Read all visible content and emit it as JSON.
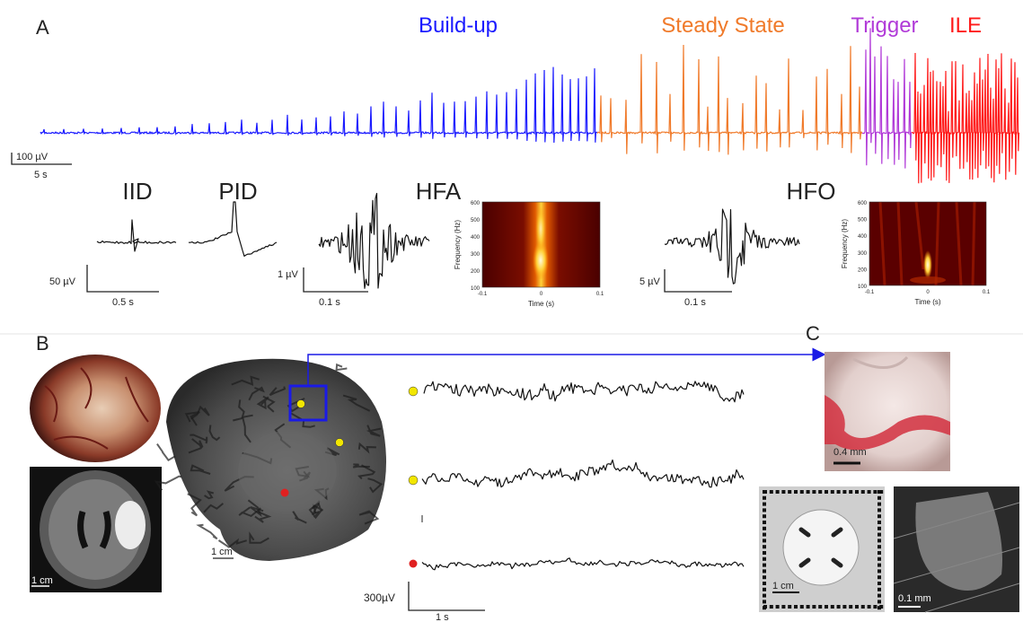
{
  "panel_a": {
    "label": "A",
    "phases": [
      "Build-up",
      "Steady State",
      "Trigger",
      "ILE"
    ],
    "main_scale": [
      "100 µV",
      "5 s"
    ],
    "titles": [
      "IID",
      "PID",
      "HFA",
      "HFO"
    ],
    "scale_bars": [
      [
        "50 µV",
        "0.5 s"
      ],
      [
        "1 µV",
        "0.1 s"
      ],
      [
        "5 µV",
        "0.1 s"
      ]
    ],
    "spectrogram": {
      "y_label": "Frequency (Hz)",
      "y_ticks": [
        "600",
        "500",
        "400",
        "300",
        "200",
        "100"
      ],
      "x_label": "Time (s)",
      "x_ticks": [
        "-0.1",
        "0",
        "0.1"
      ]
    }
  },
  "panel_b": {
    "label": "B",
    "scale_labels": [
      "1 cm",
      "1 cm",
      "1 cm"
    ],
    "eeg_scale": [
      "300µV",
      "1 s"
    ]
  },
  "panel_c": {
    "label": "C",
    "scale_labels": [
      "0.4 mm",
      "1 cm",
      "0.1 mm"
    ]
  }
}
